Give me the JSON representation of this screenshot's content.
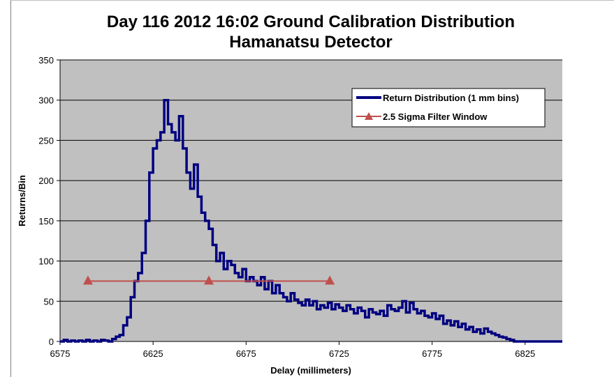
{
  "chart_data": {
    "type": "line",
    "title": "Day 116 2012 16:02 Ground Calibration Distribution",
    "subtitle": "Hamanatsu Detector",
    "xlabel": "Delay (millimeters)",
    "ylabel": "Returns/Bin",
    "xlim": [
      6575,
      6845
    ],
    "ylim": [
      0,
      350
    ],
    "x_ticks": [
      "6575",
      "6625",
      "6675",
      "6725",
      "6775",
      "6825"
    ],
    "y_ticks": [
      "0",
      "50",
      "100",
      "150",
      "200",
      "250",
      "300",
      "350"
    ],
    "grid": "horizontal",
    "legend_position": "top-right",
    "colors": {
      "plot_background": "#c0c0c0",
      "distribution": "#000080",
      "filter_window": "#c0504d"
    },
    "series": [
      {
        "name": "Return Distribution (1 mm bins)",
        "style": "step",
        "x": [
          6575,
          6577,
          6579,
          6581,
          6583,
          6585,
          6587,
          6589,
          6591,
          6593,
          6595,
          6597,
          6599,
          6601,
          6603,
          6605,
          6607,
          6609,
          6611,
          6613,
          6615,
          6617,
          6619,
          6621,
          6623,
          6625,
          6627,
          6629,
          6631,
          6633,
          6635,
          6637,
          6639,
          6641,
          6643,
          6645,
          6647,
          6649,
          6651,
          6653,
          6655,
          6657,
          6659,
          6661,
          6663,
          6665,
          6667,
          6669,
          6671,
          6673,
          6675,
          6677,
          6679,
          6681,
          6683,
          6685,
          6687,
          6689,
          6691,
          6693,
          6695,
          6697,
          6699,
          6701,
          6703,
          6705,
          6707,
          6709,
          6711,
          6713,
          6715,
          6717,
          6719,
          6721,
          6723,
          6725,
          6727,
          6729,
          6731,
          6733,
          6735,
          6737,
          6739,
          6741,
          6743,
          6745,
          6747,
          6749,
          6751,
          6753,
          6755,
          6757,
          6759,
          6761,
          6763,
          6765,
          6767,
          6769,
          6771,
          6773,
          6775,
          6777,
          6779,
          6781,
          6783,
          6785,
          6787,
          6789,
          6791,
          6793,
          6795,
          6797,
          6799,
          6801,
          6803,
          6805,
          6807,
          6809,
          6811,
          6813,
          6815,
          6817,
          6819,
          6821,
          6823,
          6825,
          6827,
          6829,
          6831,
          6833,
          6835,
          6837,
          6839,
          6841,
          6843
        ],
        "values": [
          0,
          2,
          0,
          1,
          0,
          1,
          0,
          2,
          0,
          1,
          0,
          2,
          1,
          0,
          3,
          6,
          8,
          20,
          30,
          55,
          75,
          85,
          110,
          150,
          210,
          240,
          250,
          260,
          300,
          270,
          260,
          250,
          280,
          240,
          210,
          190,
          220,
          180,
          160,
          150,
          140,
          120,
          100,
          110,
          90,
          100,
          95,
          85,
          80,
          90,
          75,
          80,
          75,
          70,
          80,
          65,
          75,
          60,
          70,
          60,
          55,
          50,
          60,
          52,
          48,
          45,
          52,
          45,
          50,
          40,
          45,
          42,
          48,
          40,
          46,
          42,
          38,
          45,
          40,
          35,
          42,
          38,
          30,
          40,
          36,
          34,
          38,
          32,
          45,
          40,
          38,
          42,
          50,
          36,
          48,
          40,
          35,
          38,
          32,
          30,
          35,
          28,
          32,
          22,
          26,
          20,
          25,
          18,
          22,
          15,
          18,
          12,
          15,
          10,
          16,
          12,
          10,
          8,
          6,
          5,
          3,
          2,
          0,
          0,
          0,
          0,
          0,
          0,
          0,
          0,
          0,
          0,
          0,
          0,
          0
        ]
      },
      {
        "name": "2.5 Sigma Filter Window",
        "style": "line-triangle-markers",
        "x": [
          6590,
          6655,
          6720
        ],
        "values": [
          75,
          75,
          75
        ]
      }
    ]
  }
}
